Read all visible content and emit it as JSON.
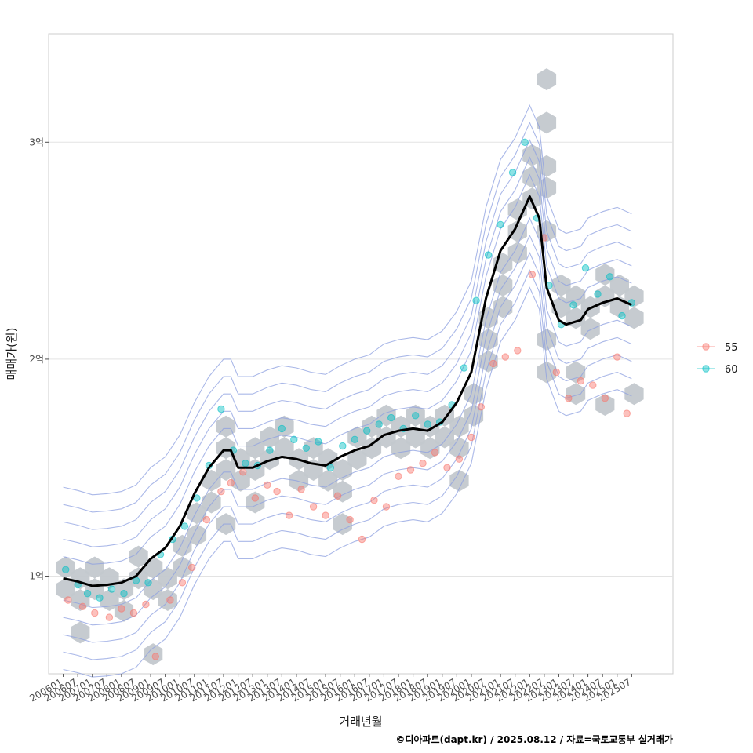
{
  "chart_data": {
    "type": "scatter",
    "xlabel": "거래년월",
    "ylabel": "매매가(원)",
    "caption": "©디아파트(dapt.kr) / 2025.08.12 / 자료=국토교통부 실거래가",
    "x_ticks": [
      "200601",
      "200607",
      "200701",
      "200707",
      "200801",
      "200807",
      "200901",
      "200907",
      "201001",
      "201007",
      "201101",
      "201107",
      "201201",
      "201207",
      "201301",
      "201307",
      "201401",
      "201407",
      "201501",
      "201507",
      "201601",
      "201607",
      "201701",
      "201707",
      "201801",
      "201807",
      "201901",
      "201907",
      "202001",
      "202007",
      "202101",
      "202107",
      "202201",
      "202207",
      "202301",
      "202307",
      "202401",
      "202407",
      "202501",
      "202507"
    ],
    "xlim": [
      "2005-07",
      "2026-12"
    ],
    "ylim": [
      5500,
      35000
    ],
    "y_unit": "만원",
    "y_ticks": [
      {
        "value": 10000,
        "label": "1억"
      },
      {
        "value": 20000,
        "label": "2억"
      },
      {
        "value": 30000,
        "label": "3억"
      }
    ],
    "grid": true,
    "legend_position": "right",
    "colors": {
      "55": "#F8766D",
      "60": "#00BFC4",
      "hex": "#C3C8CD",
      "contour": "#8DA0E0",
      "trend": "#000000"
    },
    "series": [
      {
        "name": "55",
        "x": [
          "2006-03",
          "2006-09",
          "2007-02",
          "2007-08",
          "2008-01",
          "2008-06",
          "2008-11",
          "2009-03",
          "2009-09",
          "2010-02",
          "2010-06",
          "2010-12",
          "2011-06",
          "2011-10",
          "2012-03",
          "2012-08",
          "2013-01",
          "2013-05",
          "2013-10",
          "2014-03",
          "2014-08",
          "2015-01",
          "2015-06",
          "2015-11",
          "2016-04",
          "2016-09",
          "2017-02",
          "2017-07",
          "2017-12",
          "2018-05",
          "2018-10",
          "2019-03",
          "2019-08",
          "2020-01",
          "2020-05",
          "2020-10",
          "2021-03",
          "2021-08",
          "2022-02",
          "2022-07",
          "2022-12",
          "2023-05",
          "2023-10",
          "2024-03",
          "2024-08",
          "2025-01",
          "2025-05"
        ],
        "y": [
          8900,
          8600,
          8300,
          8100,
          8500,
          8300,
          8700,
          6300,
          8900,
          9700,
          10400,
          12600,
          13900,
          14300,
          14800,
          13600,
          14200,
          13900,
          12800,
          14000,
          13200,
          12800,
          13700,
          12600,
          11700,
          13500,
          13200,
          14600,
          14900,
          15200,
          15700,
          15000,
          15400,
          16400,
          17800,
          19800,
          20100,
          20400,
          23900,
          25600,
          19400,
          18200,
          19000,
          18800,
          18200,
          20100,
          17500
        ]
      },
      {
        "name": "60",
        "x": [
          "2006-02",
          "2006-07",
          "2006-11",
          "2007-04",
          "2007-09",
          "2008-02",
          "2008-07",
          "2008-12",
          "2009-05",
          "2009-10",
          "2010-03",
          "2010-08",
          "2011-01",
          "2011-06",
          "2011-11",
          "2012-04",
          "2012-09",
          "2013-02",
          "2013-07",
          "2013-12",
          "2014-05",
          "2014-10",
          "2015-03",
          "2015-08",
          "2016-01",
          "2016-06",
          "2016-11",
          "2017-04",
          "2017-09",
          "2018-02",
          "2018-07",
          "2018-12",
          "2019-05",
          "2019-10",
          "2020-03",
          "2020-08",
          "2021-01",
          "2021-06",
          "2021-11",
          "2022-04",
          "2022-09",
          "2023-02",
          "2023-07",
          "2023-12",
          "2024-05",
          "2024-10",
          "2025-03",
          "2025-07"
        ],
        "y": [
          10300,
          9600,
          9200,
          9000,
          9400,
          9200,
          9800,
          9700,
          11000,
          11700,
          12300,
          13600,
          15100,
          17700,
          15800,
          15200,
          15100,
          15800,
          16800,
          16300,
          15900,
          16200,
          15000,
          16000,
          16300,
          16700,
          17000,
          17300,
          16800,
          17400,
          17000,
          17100,
          17900,
          19600,
          22700,
          24800,
          26200,
          28600,
          30000,
          26500,
          23400,
          21600,
          22500,
          24200,
          23000,
          23800,
          22000,
          22600
        ]
      }
    ],
    "trend": {
      "x": [
        "2006-01",
        "2006-07",
        "2007-01",
        "2007-07",
        "2008-01",
        "2008-07",
        "2009-01",
        "2009-07",
        "2010-01",
        "2010-07",
        "2011-01",
        "2011-07",
        "2011-10",
        "2012-01",
        "2012-07",
        "2013-01",
        "2013-07",
        "2014-01",
        "2014-07",
        "2015-01",
        "2015-07",
        "2016-01",
        "2016-07",
        "2017-01",
        "2017-07",
        "2018-01",
        "2018-07",
        "2019-01",
        "2019-07",
        "2020-01",
        "2020-07",
        "2021-01",
        "2021-07",
        "2022-01",
        "2022-05",
        "2022-08",
        "2023-01",
        "2023-04",
        "2023-10",
        "2024-01",
        "2024-07",
        "2025-01",
        "2025-07"
      ],
      "y": [
        9900,
        9750,
        9550,
        9600,
        9700,
        10000,
        10800,
        11300,
        12300,
        13800,
        15000,
        15800,
        15800,
        15000,
        15000,
        15300,
        15500,
        15400,
        15200,
        15100,
        15500,
        15800,
        16000,
        16500,
        16700,
        16800,
        16700,
        17100,
        18000,
        19400,
        22800,
        25000,
        26000,
        27500,
        26500,
        23300,
        21800,
        21600,
        21800,
        22300,
        22600,
        22800,
        22500
      ]
    },
    "hexbins": [
      [
        "2006-02",
        10400
      ],
      [
        "2006-02",
        9400
      ],
      [
        "2006-08",
        9900
      ],
      [
        "2006-08",
        8900
      ],
      [
        "2007-02",
        9400
      ],
      [
        "2007-02",
        10400
      ],
      [
        "2007-08",
        9900
      ],
      [
        "2007-08",
        8900
      ],
      [
        "2008-02",
        9400
      ],
      [
        "2008-02",
        8400
      ],
      [
        "2008-08",
        9900
      ],
      [
        "2008-08",
        10900
      ],
      [
        "2009-02",
        9400
      ],
      [
        "2009-02",
        10400
      ],
      [
        "2009-08",
        8900
      ],
      [
        "2009-08",
        9900
      ],
      [
        "2010-02",
        10400
      ],
      [
        "2010-02",
        11400
      ],
      [
        "2010-08",
        11900
      ],
      [
        "2010-08",
        12900
      ],
      [
        "2011-02",
        13400
      ],
      [
        "2011-02",
        14400
      ],
      [
        "2011-08",
        14900
      ],
      [
        "2011-08",
        15900
      ],
      [
        "2011-08",
        16900
      ],
      [
        "2012-02",
        15400
      ],
      [
        "2012-02",
        14400
      ],
      [
        "2012-08",
        14900
      ],
      [
        "2012-08",
        15900
      ],
      [
        "2013-02",
        15400
      ],
      [
        "2013-02",
        16400
      ],
      [
        "2013-08",
        15900
      ],
      [
        "2013-08",
        16900
      ],
      [
        "2014-02",
        15400
      ],
      [
        "2014-02",
        14400
      ],
      [
        "2014-08",
        14900
      ],
      [
        "2014-08",
        15900
      ],
      [
        "2015-02",
        15400
      ],
      [
        "2015-02",
        14400
      ],
      [
        "2015-08",
        13900
      ],
      [
        "2015-08",
        14900
      ],
      [
        "2016-02",
        15400
      ],
      [
        "2016-02",
        16400
      ],
      [
        "2016-08",
        15900
      ],
      [
        "2016-08",
        16900
      ],
      [
        "2017-02",
        16400
      ],
      [
        "2017-02",
        17400
      ],
      [
        "2017-08",
        16900
      ],
      [
        "2017-08",
        15900
      ],
      [
        "2018-02",
        16400
      ],
      [
        "2018-02",
        17400
      ],
      [
        "2018-08",
        16900
      ],
      [
        "2018-08",
        15900
      ],
      [
        "2019-02",
        16400
      ],
      [
        "2019-02",
        17400
      ],
      [
        "2019-08",
        16900
      ],
      [
        "2019-08",
        15900
      ],
      [
        "2020-02",
        17400
      ],
      [
        "2020-02",
        18400
      ],
      [
        "2020-08",
        19900
      ],
      [
        "2020-08",
        20900
      ],
      [
        "2020-08",
        21900
      ],
      [
        "2021-02",
        22400
      ],
      [
        "2021-02",
        23400
      ],
      [
        "2021-02",
        24400
      ],
      [
        "2021-08",
        24900
      ],
      [
        "2021-08",
        25900
      ],
      [
        "2021-08",
        26900
      ],
      [
        "2022-02",
        27400
      ],
      [
        "2022-02",
        28400
      ],
      [
        "2022-02",
        29400
      ],
      [
        "2022-08",
        28900
      ],
      [
        "2022-08",
        27900
      ],
      [
        "2022-08",
        25900
      ],
      [
        "2023-02",
        22400
      ],
      [
        "2023-02",
        23400
      ],
      [
        "2023-08",
        21900
      ],
      [
        "2023-08",
        22900
      ],
      [
        "2024-02",
        22400
      ],
      [
        "2024-02",
        21400
      ],
      [
        "2024-08",
        22900
      ],
      [
        "2024-08",
        23900
      ],
      [
        "2025-02",
        23400
      ],
      [
        "2025-02",
        22400
      ],
      [
        "2025-08",
        22900
      ],
      [
        "2025-08",
        21900
      ],
      [
        "2009-02",
        6400
      ],
      [
        "2006-08",
        7400
      ],
      [
        "2024-08",
        17900
      ],
      [
        "2025-08",
        18400
      ],
      [
        "2022-08",
        20900
      ],
      [
        "2022-08",
        19400
      ],
      [
        "2023-08",
        19400
      ],
      [
        "2023-08",
        18400
      ],
      [
        "2015-08",
        12400
      ],
      [
        "2011-08",
        12400
      ],
      [
        "2012-08",
        13400
      ],
      [
        "2019-08",
        14400
      ],
      [
        "2022-08",
        30900
      ],
      [
        "2022-08",
        32900
      ]
    ]
  }
}
